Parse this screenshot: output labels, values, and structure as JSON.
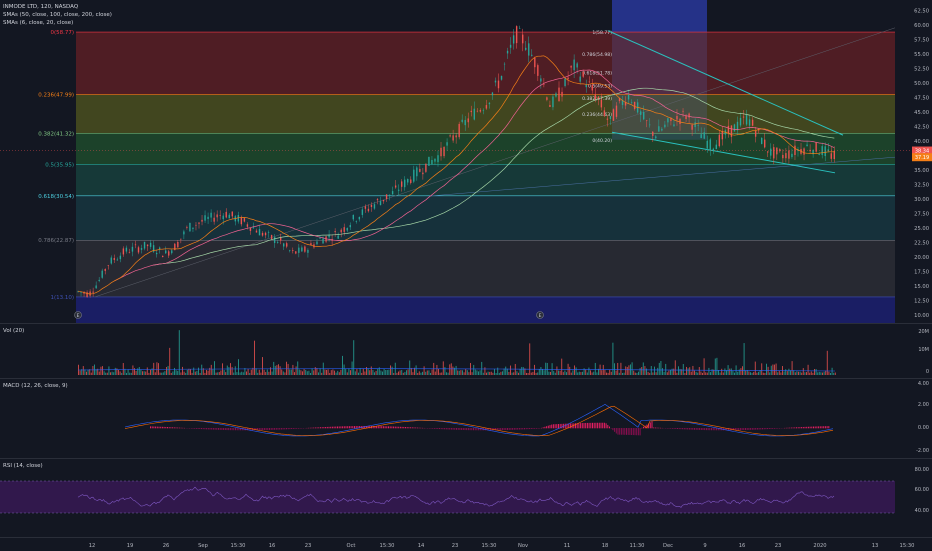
{
  "header": {
    "symbol_line": "INMODE LTD, 120, NASDAQ",
    "sma_line": "SMAs (50, close, 100, close, 200, close)",
    "sma2_line": "SMAs (6, close, 20, close)"
  },
  "main_pane": {
    "price_axis": [
      "62.50",
      "60.00",
      "57.50",
      "55.00",
      "52.50",
      "50.00",
      "47.50",
      "45.00",
      "42.50",
      "40.00",
      "37.50",
      "35.00",
      "32.50",
      "30.00",
      "27.50",
      "25.00",
      "22.50",
      "20.00",
      "17.50",
      "15.00",
      "12.50",
      "10.00"
    ],
    "price_axis_values": [
      62.5,
      60,
      57.5,
      55,
      52.5,
      50,
      47.5,
      45,
      42.5,
      40,
      37.5,
      35,
      32.5,
      30,
      27.5,
      25,
      22.5,
      20,
      17.5,
      15,
      12.5,
      10
    ],
    "price_range": [
      8.6,
      64.3
    ],
    "price_badges": [
      "38.34",
      "37.19"
    ],
    "fib_levels": [
      {
        "label": "0(58.77)",
        "value": 58.77,
        "color": "#f23645"
      },
      {
        "label": "0.236(47.99)",
        "value": 47.99,
        "color": "#f57f17"
      },
      {
        "label": "0.382(41.32)",
        "value": 41.32,
        "color": "#81c784"
      },
      {
        "label": "0.5(35.95)",
        "value": 35.95,
        "color": "#26a69a"
      },
      {
        "label": "0.618(30.54)",
        "value": 30.54,
        "color": "#4dd0e1"
      },
      {
        "label": "0.786(22.87)",
        "value": 22.87,
        "color": "#787b86"
      },
      {
        "label": "1(13.10)",
        "value": 13.1,
        "color": "#3f51b5"
      }
    ],
    "inner_fib_labels": [
      "1(58.77)",
      "0.786(54.98)",
      "0.618(51.78)",
      "0.5(49.53)",
      "0.382(47.39)",
      "0.236(44.63)",
      "0(40.20)"
    ],
    "event_markers": [
      "E",
      "E"
    ],
    "bands": [
      {
        "from": 58.77,
        "to": 47.99,
        "color": "#5b1e24"
      },
      {
        "from": 47.99,
        "to": 41.32,
        "color": "#4a4f1e"
      },
      {
        "from": 41.32,
        "to": 35.95,
        "color": "#1e4a2c"
      },
      {
        "from": 35.95,
        "to": 30.54,
        "color": "#17403c"
      },
      {
        "from": 30.54,
        "to": 22.87,
        "color": "#173640"
      },
      {
        "from": 22.87,
        "to": 13.1,
        "color": "#2b2d35"
      },
      {
        "from": 13.1,
        "to": 8.6,
        "color": "#1c2070"
      }
    ]
  },
  "volume_pane": {
    "label": "Vol (20)",
    "axis": [
      "20M",
      "10M",
      "0"
    ]
  },
  "macd_pane": {
    "label": "MACD (12, 26, close, 9)",
    "axis": [
      "4.00",
      "2.00",
      "0.00",
      "-2.00"
    ]
  },
  "rsi_pane": {
    "label": "RSI (14, close)",
    "axis": [
      "80.00",
      "60.00",
      "40.00"
    ]
  },
  "time_axis": {
    "labels": [
      "12",
      "19",
      "26",
      "Sep",
      "15:30",
      "16",
      "23",
      "Oct",
      "15:30",
      "14",
      "23",
      "15:30",
      "Nov",
      "11",
      "18",
      "11:30",
      "Dec",
      "9",
      "16",
      "23",
      "2020",
      "13",
      "15:30"
    ],
    "positions": [
      92,
      130,
      166,
      203,
      238,
      272,
      308,
      351,
      387,
      421,
      455,
      489,
      523,
      567,
      605,
      637,
      668,
      705,
      742,
      778,
      820,
      875,
      907
    ]
  },
  "colors": {
    "background": "#131722",
    "up": "#26a69a",
    "down": "#ef5350",
    "grid": "#1e222d",
    "channel": "#2ac2bf",
    "sma50": "#f57f17",
    "sma200": "#a5d6a7",
    "sma100": "#f06292",
    "rsi_band": "#6a1b9a"
  }
}
